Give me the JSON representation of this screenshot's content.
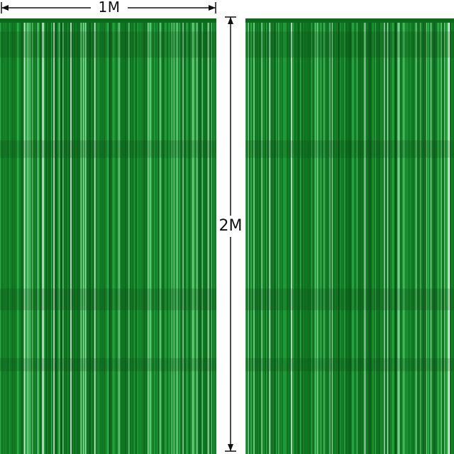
{
  "dimensions": {
    "width_label": "1M",
    "height_label": "2M"
  },
  "colors": {
    "curtain_dark": "#0c6a1c",
    "curtain_mid": "#1f9a38",
    "curtain_light": "#8fe0a0",
    "dimension_line": "#111111",
    "background": "#ffffff"
  }
}
